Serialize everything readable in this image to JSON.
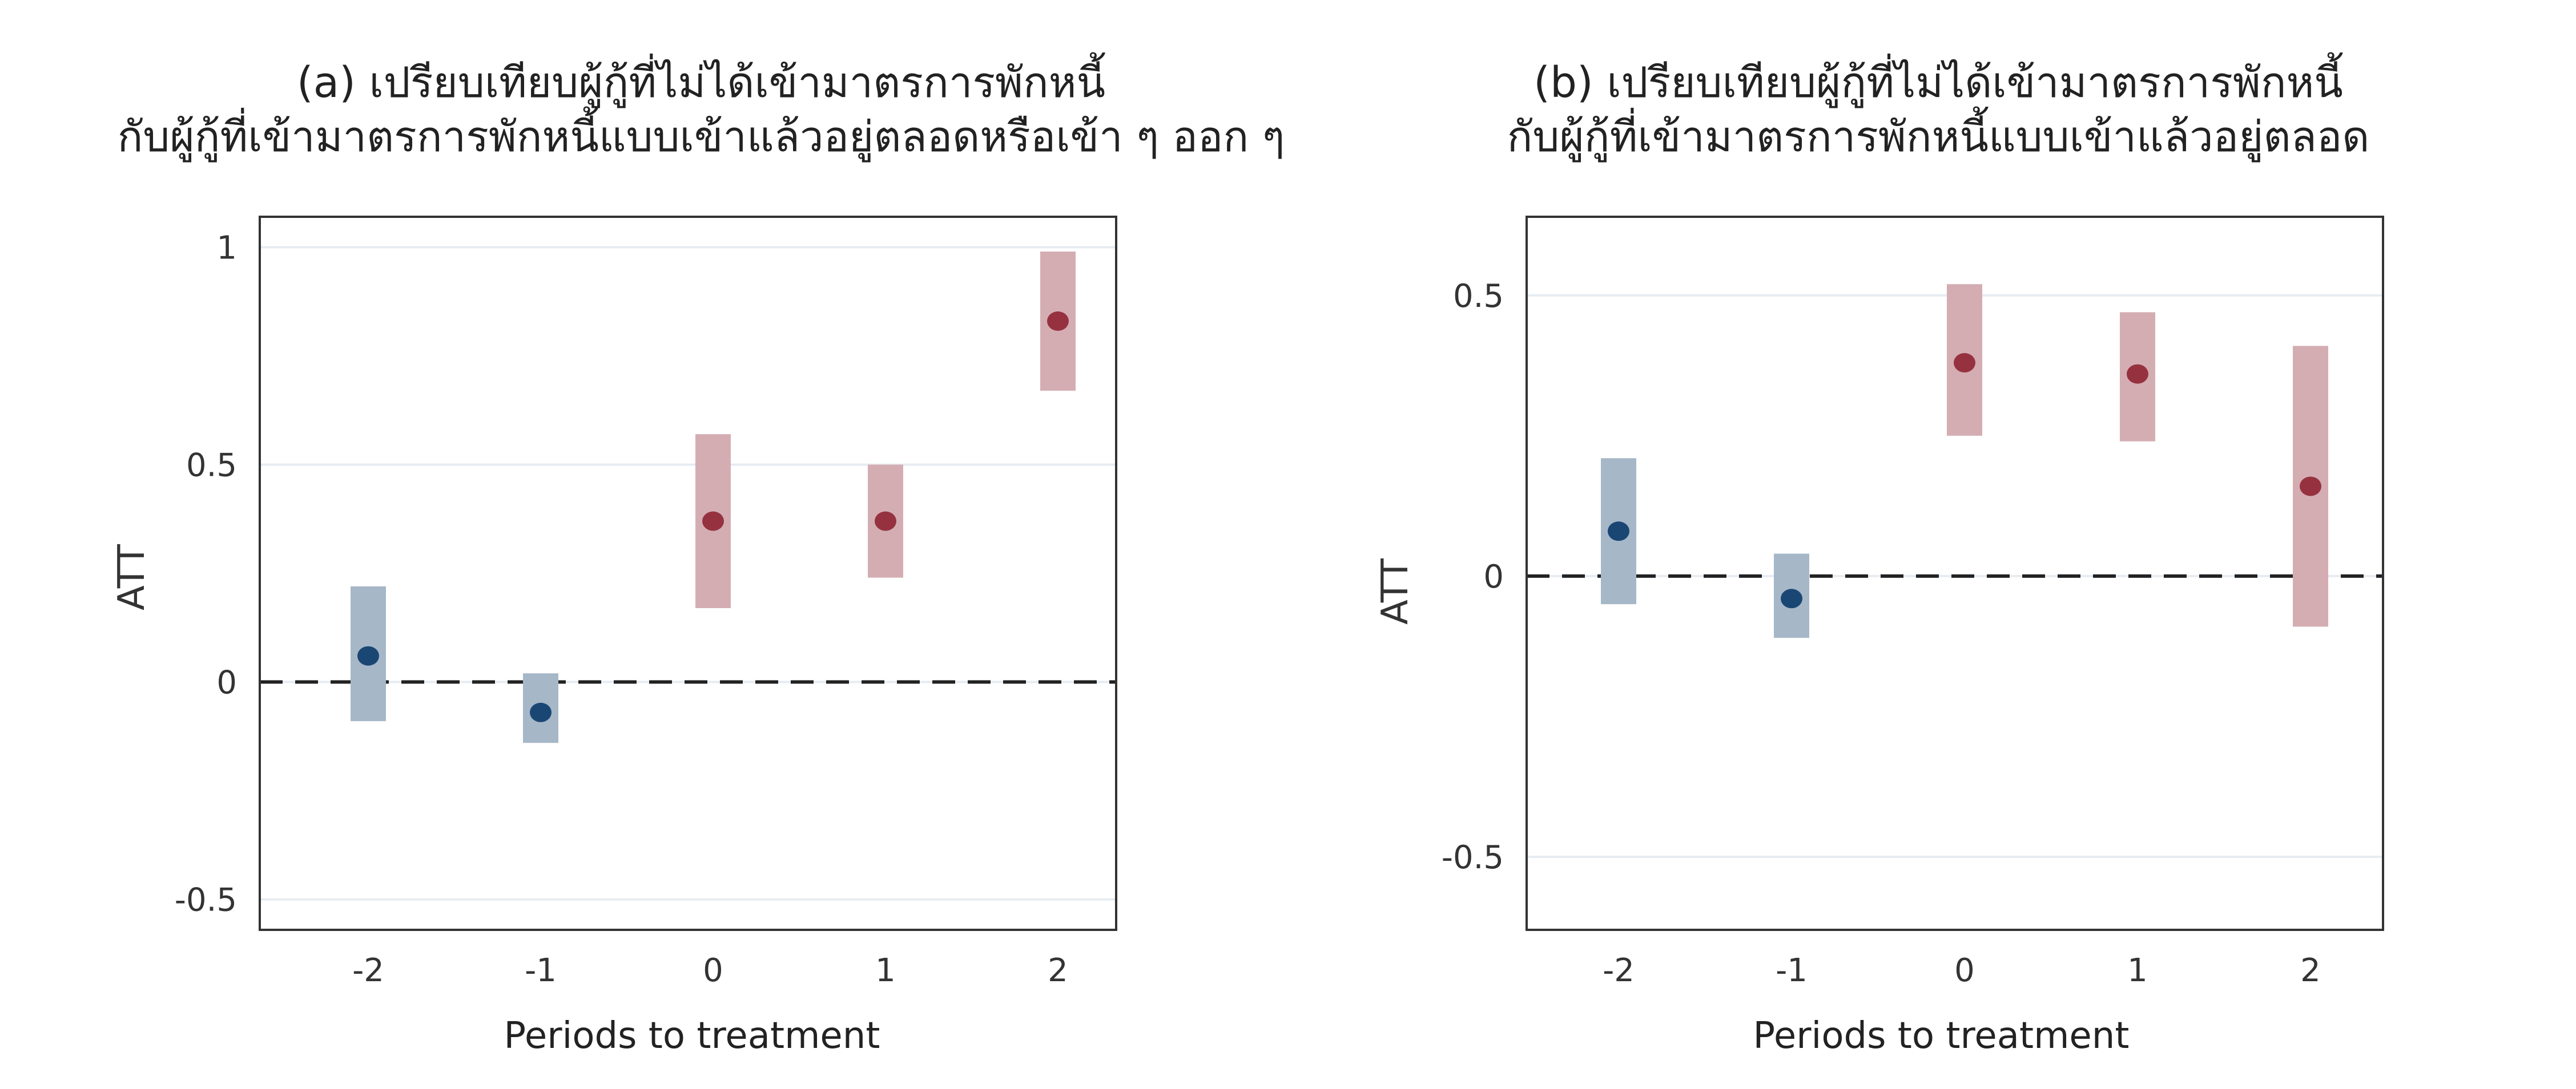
{
  "chart_data": [
    {
      "type": "scatter",
      "title_lines": [
        "(a) เปรียบเทียบผู้กู้ที่ไม่ได้เข้ามาตรการพักหนี้",
        "กับผู้กู้ที่เข้ามาตรการพักหนี้แบบเข้าแล้วอยู่ตลอดหรือเข้า ๆ ออก ๆ"
      ],
      "xlabel": "Periods to treatment",
      "ylabel": "ATT",
      "x": [
        -2,
        -1,
        0,
        1,
        2
      ],
      "x_tick_labels": [
        "-2",
        "-1",
        "0",
        "1",
        "2"
      ],
      "y": [
        0.06,
        -0.07,
        0.37,
        0.37,
        0.83
      ],
      "ci_low": [
        -0.09,
        -0.14,
        0.17,
        0.24,
        0.67
      ],
      "ci_high": [
        0.22,
        0.02,
        0.57,
        0.5,
        0.99
      ],
      "pre_treatment": [
        true,
        true,
        false,
        false,
        false
      ],
      "y_ticks": [
        -0.5,
        0,
        0.5,
        1
      ],
      "y_tick_labels": [
        "-0.5",
        "0",
        "0.5",
        "1"
      ],
      "ylim": [
        -0.57,
        1.07
      ],
      "reference_line": 0,
      "grid": true,
      "colors": {
        "pre_point": "#1a4674",
        "pre_ci": "#a6b7c8",
        "post_point": "#963240",
        "post_ci": "#d4adb3"
      }
    },
    {
      "type": "scatter",
      "title_lines": [
        "(b) เปรียบเทียบผู้กู้ที่ไม่ได้เข้ามาตรการพักหนี้",
        "กับผู้กู้ที่เข้ามาตรการพักหนี้แบบเข้าแล้วอยู่ตลอด"
      ],
      "xlabel": "Periods to treatment",
      "ylabel": "ATT",
      "x": [
        -2,
        -1,
        0,
        1,
        2
      ],
      "x_tick_labels": [
        "-2",
        "-1",
        "0",
        "1",
        "2"
      ],
      "y": [
        0.08,
        -0.04,
        0.38,
        0.36,
        0.16
      ],
      "ci_low": [
        -0.05,
        -0.11,
        0.25,
        0.24,
        -0.09
      ],
      "ci_high": [
        0.21,
        0.04,
        0.52,
        0.47,
        0.41
      ],
      "pre_treatment": [
        true,
        true,
        false,
        false,
        false
      ],
      "y_ticks": [
        -0.5,
        0,
        0.5
      ],
      "y_tick_labels": [
        "-0.5",
        "0",
        "0.5"
      ],
      "ylim": [
        -0.63,
        0.64
      ],
      "reference_line": 0,
      "grid": true,
      "colors": {
        "pre_point": "#1a4674",
        "pre_ci": "#a6b7c8",
        "post_point": "#963240",
        "post_ci": "#d4adb3"
      }
    }
  ]
}
